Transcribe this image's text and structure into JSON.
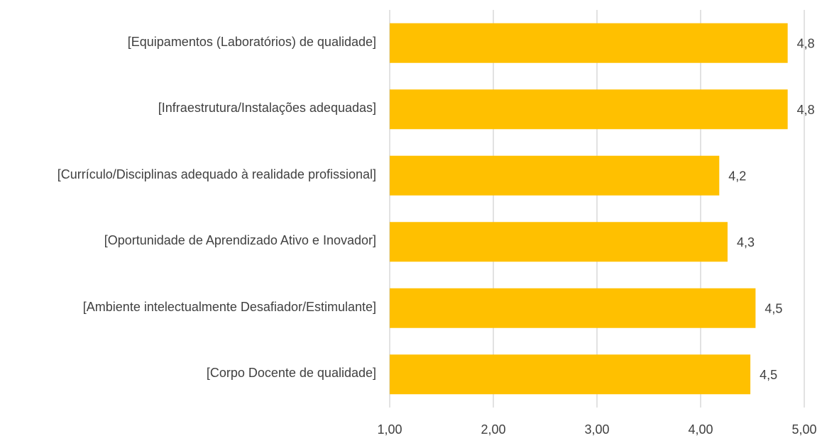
{
  "chart_data": {
    "type": "bar",
    "orientation": "horizontal",
    "categories": [
      "[Equipamentos (Laboratórios) de qualidade]",
      "[Infraestrutura/Instalações adequadas]",
      "[Currículo/Disciplinas adequado à realidade profissional]",
      "[Oportunidade de Aprendizado Ativo e Inovador]",
      "[Ambiente intelectualmente Desafiador/Estimulante]",
      "[Corpo Docente de qualidade]"
    ],
    "values": [
      4.84,
      4.84,
      4.18,
      4.26,
      4.53,
      4.48
    ],
    "value_labels": [
      "4,8",
      "4,8",
      "4,2",
      "4,3",
      "4,5",
      "4,5"
    ],
    "color": "#ffc000",
    "xlim": [
      1,
      5
    ],
    "xticks": [
      {
        "value": 1,
        "label": "1,00"
      },
      {
        "value": 2,
        "label": "2,00"
      },
      {
        "value": 3,
        "label": "3,00"
      },
      {
        "value": 4,
        "label": "4,00"
      },
      {
        "value": 5,
        "label": "5,00"
      }
    ],
    "grid": true
  }
}
